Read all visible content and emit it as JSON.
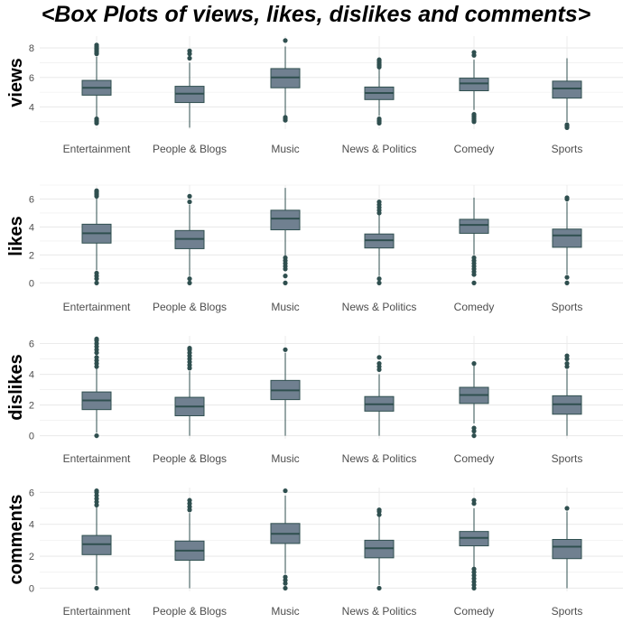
{
  "title": "<Box Plots of views, likes, dislikes and comments>",
  "colors": {
    "box_fill": "#708090",
    "box_stroke": "#2f4f4f",
    "grid": "#ebebeb",
    "background": "#ffffff"
  },
  "chart_data": [
    {
      "type": "box",
      "ylabel": "views",
      "categories": [
        "Entertainment",
        "People & Blogs",
        "Music",
        "News & Politics",
        "Comedy",
        "Sports"
      ],
      "ylim": [
        2.5,
        8.8
      ],
      "yticks": [
        4,
        6,
        8
      ],
      "grid": true,
      "boxes": [
        {
          "category": "Entertainment",
          "min": 3.3,
          "q1": 4.8,
          "median": 5.3,
          "q3": 5.8,
          "max": 7.4,
          "outliers": [
            2.9,
            3.0,
            3.1,
            3.2,
            7.6,
            7.7,
            7.8,
            7.9,
            8.0,
            8.1,
            8.2
          ]
        },
        {
          "category": "People & Blogs",
          "min": 2.6,
          "q1": 4.3,
          "median": 4.9,
          "q3": 5.4,
          "max": 7.0,
          "outliers": [
            7.3,
            7.6,
            7.8
          ]
        },
        {
          "category": "Music",
          "min": 3.4,
          "q1": 5.3,
          "median": 6.0,
          "q3": 6.6,
          "max": 8.1,
          "outliers": [
            3.1,
            3.2,
            3.3,
            8.5
          ]
        },
        {
          "category": "News & Politics",
          "min": 3.4,
          "q1": 4.5,
          "median": 4.95,
          "q3": 5.35,
          "max": 6.6,
          "outliers": [
            2.9,
            3.0,
            3.1,
            3.2,
            6.7,
            6.8,
            6.9,
            7.0,
            7.1,
            7.2
          ]
        },
        {
          "category": "Comedy",
          "min": 3.8,
          "q1": 5.1,
          "median": 5.6,
          "q3": 5.95,
          "max": 7.2,
          "outliers": [
            3.0,
            3.1,
            3.2,
            3.3,
            3.4,
            3.5,
            7.5,
            7.7
          ]
        },
        {
          "category": "Sports",
          "min": 3.0,
          "q1": 4.6,
          "median": 5.25,
          "q3": 5.75,
          "max": 7.3,
          "outliers": [
            2.6,
            2.7,
            2.8
          ]
        }
      ]
    },
    {
      "type": "box",
      "ylabel": "likes",
      "categories": [
        "Entertainment",
        "People & Blogs",
        "Music",
        "News & Politics",
        "Comedy",
        "Sports"
      ],
      "ylim": [
        -0.3,
        7.0
      ],
      "yticks": [
        0,
        2,
        4,
        6
      ],
      "grid": true,
      "boxes": [
        {
          "category": "Entertainment",
          "min": 0.9,
          "q1": 2.85,
          "median": 3.55,
          "q3": 4.2,
          "max": 6.1,
          "outliers": [
            0.0,
            0.3,
            0.5,
            0.7,
            6.2,
            6.3,
            6.4,
            6.5,
            6.6
          ]
        },
        {
          "category": "People & Blogs",
          "min": 0.5,
          "q1": 2.45,
          "median": 3.15,
          "q3": 3.75,
          "max": 5.6,
          "outliers": [
            0.0,
            0.3,
            5.8,
            6.2
          ]
        },
        {
          "category": "Music",
          "min": 1.9,
          "q1": 3.8,
          "median": 4.6,
          "q3": 5.2,
          "max": 6.8,
          "outliers": [
            0.0,
            0.5,
            1.0,
            1.2,
            1.4,
            1.6,
            1.8
          ]
        },
        {
          "category": "News & Politics",
          "min": 0.5,
          "q1": 2.5,
          "median": 3.05,
          "q3": 3.5,
          "max": 4.9,
          "outliers": [
            0.0,
            0.3,
            5.0,
            5.2,
            5.4,
            5.6,
            5.8
          ]
        },
        {
          "category": "Comedy",
          "min": 2.0,
          "q1": 3.55,
          "median": 4.15,
          "q3": 4.55,
          "max": 6.1,
          "outliers": [
            0.0,
            0.6,
            0.8,
            1.0,
            1.2,
            1.4,
            1.6,
            1.8
          ]
        },
        {
          "category": "Sports",
          "min": 0.6,
          "q1": 2.55,
          "median": 3.4,
          "q3": 3.85,
          "max": 5.8,
          "outliers": [
            0.0,
            0.4,
            6.0,
            6.1
          ]
        }
      ]
    },
    {
      "type": "box",
      "ylabel": "dislikes",
      "categories": [
        "Entertainment",
        "People & Blogs",
        "Music",
        "News & Politics",
        "Comedy",
        "Sports"
      ],
      "ylim": [
        -0.2,
        6.5
      ],
      "yticks": [
        0,
        2,
        4,
        6
      ],
      "grid": true,
      "boxes": [
        {
          "category": "Entertainment",
          "min": 0.2,
          "q1": 1.7,
          "median": 2.3,
          "q3": 2.85,
          "max": 4.4,
          "outliers": [
            0.0,
            4.5,
            4.7,
            4.9,
            5.1,
            5.4,
            5.6,
            5.8,
            6.0,
            6.2,
            6.3
          ]
        },
        {
          "category": "People & Blogs",
          "min": 0.0,
          "q1": 1.3,
          "median": 1.9,
          "q3": 2.5,
          "max": 4.2,
          "outliers": [
            4.4,
            4.6,
            4.8,
            5.0,
            5.2,
            5.4,
            5.6,
            5.7
          ]
        },
        {
          "category": "Music",
          "min": 0.0,
          "q1": 2.35,
          "median": 2.95,
          "q3": 3.6,
          "max": 5.4,
          "outliers": [
            5.6
          ]
        },
        {
          "category": "News & Politics",
          "min": 0.0,
          "q1": 1.6,
          "median": 2.05,
          "q3": 2.55,
          "max": 4.0,
          "outliers": [
            4.3,
            4.5,
            4.7,
            5.1
          ]
        },
        {
          "category": "Comedy",
          "min": 0.8,
          "q1": 2.1,
          "median": 2.65,
          "q3": 3.15,
          "max": 4.6,
          "outliers": [
            0.0,
            0.3,
            0.5,
            4.7
          ]
        },
        {
          "category": "Sports",
          "min": 0.0,
          "q1": 1.4,
          "median": 2.05,
          "q3": 2.6,
          "max": 4.3,
          "outliers": [
            4.5,
            4.7,
            5.0,
            5.2
          ]
        }
      ]
    },
    {
      "type": "box",
      "ylabel": "comments",
      "categories": [
        "Entertainment",
        "People & Blogs",
        "Music",
        "News & Politics",
        "Comedy",
        "Sports"
      ],
      "ylim": [
        -0.2,
        6.3
      ],
      "yticks": [
        0,
        2,
        4,
        6
      ],
      "grid": true,
      "boxes": [
        {
          "category": "Entertainment",
          "min": 0.2,
          "q1": 2.1,
          "median": 2.75,
          "q3": 3.3,
          "max": 5.1,
          "outliers": [
            0.0,
            5.2,
            5.4,
            5.6,
            5.8,
            6.0,
            6.1
          ]
        },
        {
          "category": "People & Blogs",
          "min": 0.0,
          "q1": 1.75,
          "median": 2.35,
          "q3": 2.95,
          "max": 4.7,
          "outliers": [
            4.9,
            5.1,
            5.3,
            5.5
          ]
        },
        {
          "category": "Music",
          "min": 0.9,
          "q1": 2.8,
          "median": 3.4,
          "q3": 4.05,
          "max": 5.8,
          "outliers": [
            0.0,
            0.3,
            0.5,
            0.7,
            6.1
          ]
        },
        {
          "category": "News & Politics",
          "min": 0.2,
          "q1": 1.9,
          "median": 2.5,
          "q3": 3.0,
          "max": 4.5,
          "outliers": [
            0.0,
            4.6,
            4.8,
            4.9
          ]
        },
        {
          "category": "Comedy",
          "min": 1.3,
          "q1": 2.65,
          "median": 3.15,
          "q3": 3.55,
          "max": 5.0,
          "outliers": [
            0.0,
            0.2,
            0.4,
            0.6,
            0.8,
            1.0,
            1.2,
            5.3,
            5.5
          ]
        },
        {
          "category": "Sports",
          "min": 0.0,
          "q1": 1.85,
          "median": 2.6,
          "q3": 3.05,
          "max": 4.8,
          "outliers": [
            5.0
          ]
        }
      ]
    }
  ]
}
